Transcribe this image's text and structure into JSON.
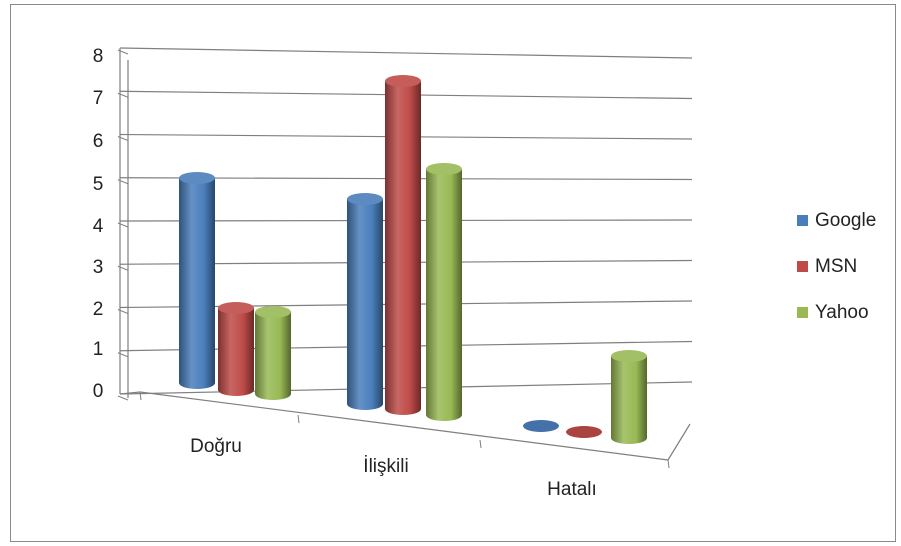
{
  "chart_data": {
    "type": "bar",
    "style": "3d-cylinder",
    "title": "",
    "xlabel": "",
    "ylabel": "",
    "ylim": [
      0,
      8
    ],
    "yticks": [
      "0",
      "1",
      "2",
      "3",
      "4",
      "5",
      "6",
      "7",
      "8"
    ],
    "grid": true,
    "legend_position": "right",
    "categories": [
      "Doğru",
      "İlişkili",
      "Hatalı"
    ],
    "series": [
      {
        "name": "Google",
        "color": "#4a7ebb",
        "values": [
          5,
          5,
          0
        ]
      },
      {
        "name": "MSN",
        "color": "#be4b48",
        "values": [
          2,
          8,
          0
        ]
      },
      {
        "name": "Yahoo",
        "color": "#98b954",
        "values": [
          2,
          6,
          2
        ]
      }
    ]
  }
}
